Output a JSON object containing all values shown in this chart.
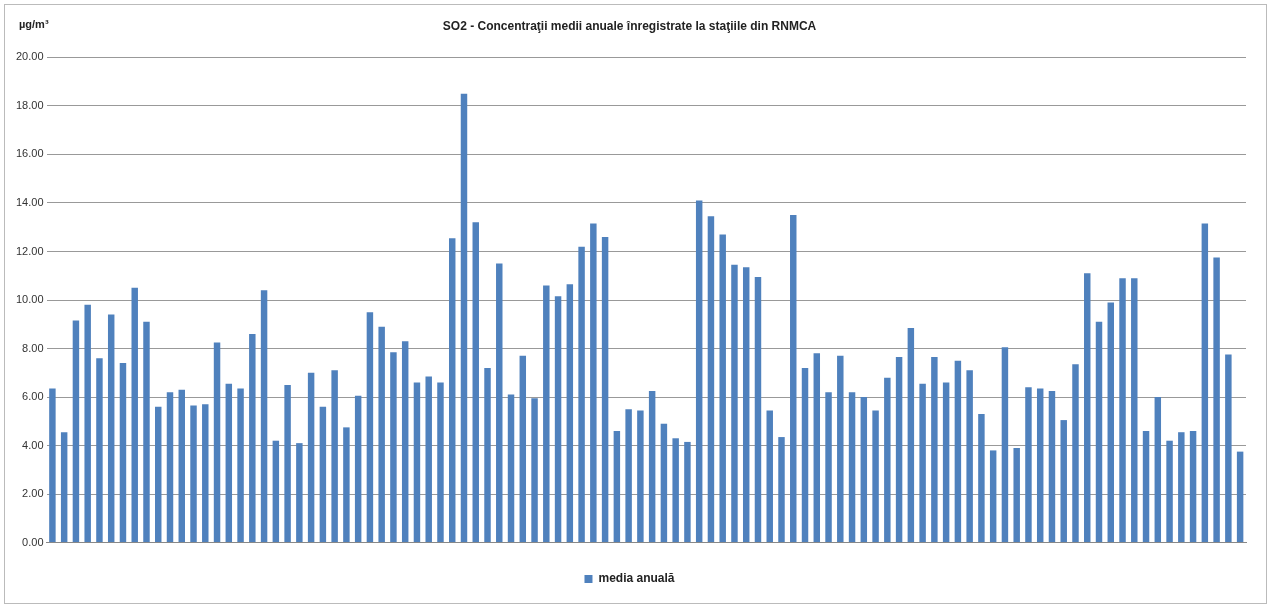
{
  "chart_data": {
    "type": "bar",
    "title": "SO2 - Concentraţii medii anuale înregistrate la staţiile din RNMCA",
    "ylabel": "µg/m³",
    "categories": [
      null,
      null,
      null,
      null,
      null,
      null,
      null,
      null,
      null,
      null,
      null,
      null,
      null,
      null,
      null,
      null,
      null,
      null,
      null,
      null,
      null,
      null,
      null,
      null,
      null,
      null,
      null,
      null,
      null,
      null,
      null,
      null,
      null,
      null,
      null,
      null,
      null,
      null,
      null,
      null,
      null,
      null,
      null,
      null,
      null,
      null,
      null,
      null,
      null,
      null,
      null,
      null,
      null,
      null,
      null,
      null,
      null,
      null,
      null,
      null,
      null,
      null,
      null,
      null,
      null,
      null,
      null,
      null,
      null,
      null,
      null,
      null,
      null,
      null,
      null,
      null,
      null,
      null,
      null,
      null,
      null,
      null,
      null,
      null,
      null,
      null,
      null,
      null,
      null,
      null,
      null,
      null,
      null,
      null,
      null,
      null,
      null,
      null,
      null,
      null,
      null,
      null
    ],
    "series": [
      {
        "name": "media anuală",
        "color": "#4f81bd",
        "values": [
          6.35,
          4.55,
          9.15,
          9.8,
          7.6,
          9.4,
          7.4,
          10.5,
          9.1,
          5.6,
          6.2,
          6.3,
          5.65,
          5.7,
          8.25,
          6.55,
          6.35,
          8.6,
          10.4,
          4.2,
          6.5,
          4.1,
          7.0,
          5.6,
          7.1,
          4.75,
          6.05,
          9.5,
          8.9,
          7.85,
          8.3,
          6.6,
          6.85,
          6.6,
          12.55,
          18.5,
          13.2,
          7.2,
          11.5,
          6.1,
          7.7,
          5.95,
          10.6,
          10.15,
          10.65,
          12.2,
          13.15,
          12.6,
          4.6,
          5.5,
          5.45,
          6.25,
          4.9,
          4.3,
          4.15,
          14.1,
          13.45,
          12.7,
          11.45,
          11.35,
          10.95,
          5.45,
          4.35,
          13.5,
          7.2,
          7.8,
          6.2,
          7.7,
          6.2,
          6.0,
          5.45,
          6.8,
          7.65,
          8.85,
          6.55,
          7.65,
          6.6,
          7.5,
          7.1,
          5.3,
          3.8,
          8.05,
          3.9,
          6.4,
          6.35,
          6.25,
          5.05,
          7.35,
          11.1,
          9.1,
          9.9,
          10.9,
          10.9,
          4.6,
          6.0,
          4.2,
          4.55,
          4.6,
          13.15,
          11.75,
          7.75,
          3.75
        ]
      }
    ],
    "ylim": [
      0,
      20
    ],
    "yticks": [
      {
        "value": 0,
        "label": "0.00"
      },
      {
        "value": 2,
        "label": "2.00"
      },
      {
        "value": 4,
        "label": "4.00"
      },
      {
        "value": 6,
        "label": "6.00"
      },
      {
        "value": 8,
        "label": "8.00"
      },
      {
        "value": 10,
        "label": "10.00"
      },
      {
        "value": 12,
        "label": "12.00"
      },
      {
        "value": 14,
        "label": "14.00"
      },
      {
        "value": 16,
        "label": "16.00"
      },
      {
        "value": 18,
        "label": "18.00"
      },
      {
        "value": 20,
        "label": "20.00"
      }
    ],
    "grid": "y",
    "legend": "bottom"
  }
}
